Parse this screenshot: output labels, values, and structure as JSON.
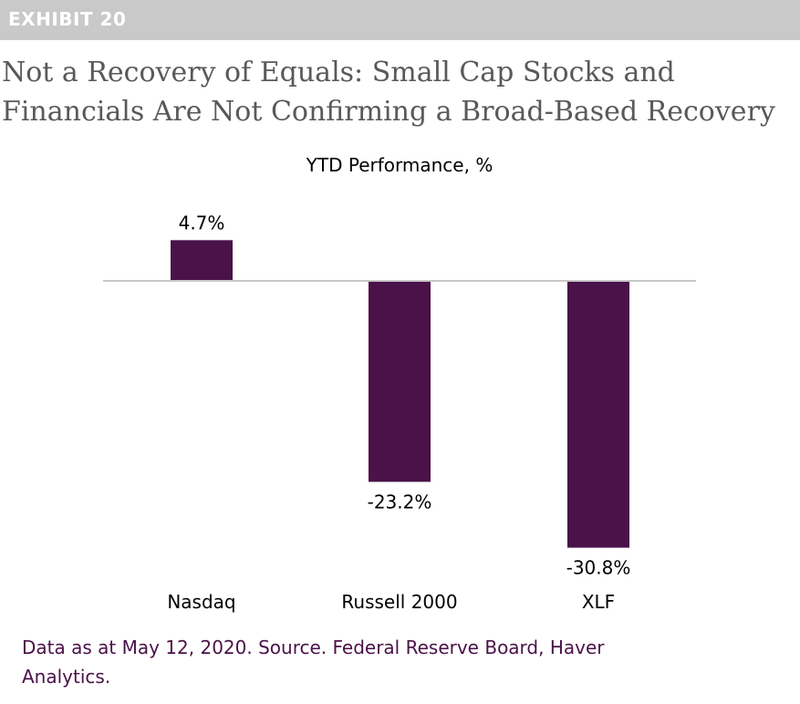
{
  "header": {
    "exhibit_label": "EXHIBIT 20",
    "title_lines": [
      "Not a Recovery of Equals: Small Cap Stocks and",
      "Financials Are Not Confirming a Broad-Based Recovery"
    ]
  },
  "chart_data": {
    "type": "bar",
    "title": "YTD Performance, %",
    "categories": [
      "Nasdaq",
      "Russell 2000",
      "XLF"
    ],
    "values": [
      4.7,
      -23.2,
      -30.8
    ],
    "data_labels": [
      "4.7%",
      "-23.2%",
      "-30.8%"
    ],
    "xlabel": "",
    "ylabel": "",
    "ylim": [
      -32,
      6
    ],
    "grid": false,
    "legend": "none",
    "bar_color": "#4a1248",
    "baseline_color": "#c8c8c8"
  },
  "footnote": {
    "lines": [
      "Data as at May 12, 2020. Source. Federal Reserve Board, Haver",
      "Analytics."
    ]
  }
}
